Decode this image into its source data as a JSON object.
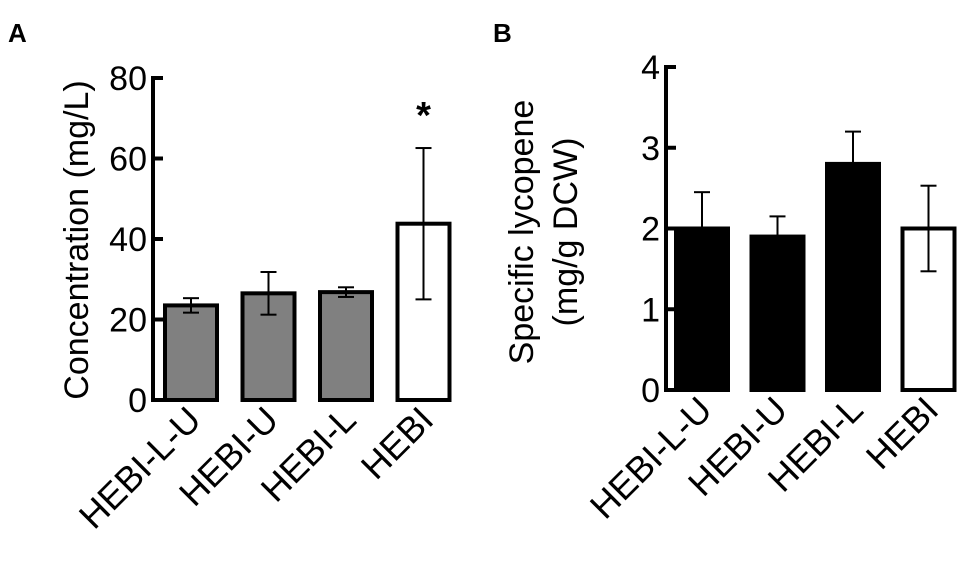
{
  "chart_data": [
    {
      "type": "bar",
      "panel_label": "A",
      "categories": [
        "HEBI-L-U",
        "HEBI-U",
        "HEBI-L",
        "HEBI"
      ],
      "values": [
        23.5,
        26.5,
        26.8,
        43.8
      ],
      "error": [
        1.8,
        5.3,
        1.2,
        18.8
      ],
      "bar_colors": [
        "#808080",
        "#808080",
        "#808080",
        "#ffffff"
      ],
      "ylabel": "Concentration (mg/L)",
      "ylabel_lines": [
        "Concentration (mg/L)"
      ],
      "ylim": [
        0,
        80
      ],
      "yticks": [
        0,
        20,
        40,
        60,
        80
      ],
      "annotations": [
        {
          "category": "HEBI",
          "text": "*"
        }
      ]
    },
    {
      "type": "bar",
      "panel_label": "B",
      "categories": [
        "HEBI-L-U",
        "HEBI-U",
        "HEBI-L",
        "HEBI"
      ],
      "values": [
        2.0,
        1.9,
        2.8,
        2.0
      ],
      "error": [
        0.45,
        0.25,
        0.4,
        0.53
      ],
      "bar_colors": [
        "#000000",
        "#000000",
        "#000000",
        "#ffffff"
      ],
      "ylabel": "Specific lycopene (mg/g  DCW)",
      "ylabel_lines": [
        "Specific lycopene",
        "(mg/g  DCW)"
      ],
      "ylim": [
        0,
        4
      ],
      "yticks": [
        0,
        1,
        2,
        3,
        4
      ],
      "annotations": []
    }
  ]
}
